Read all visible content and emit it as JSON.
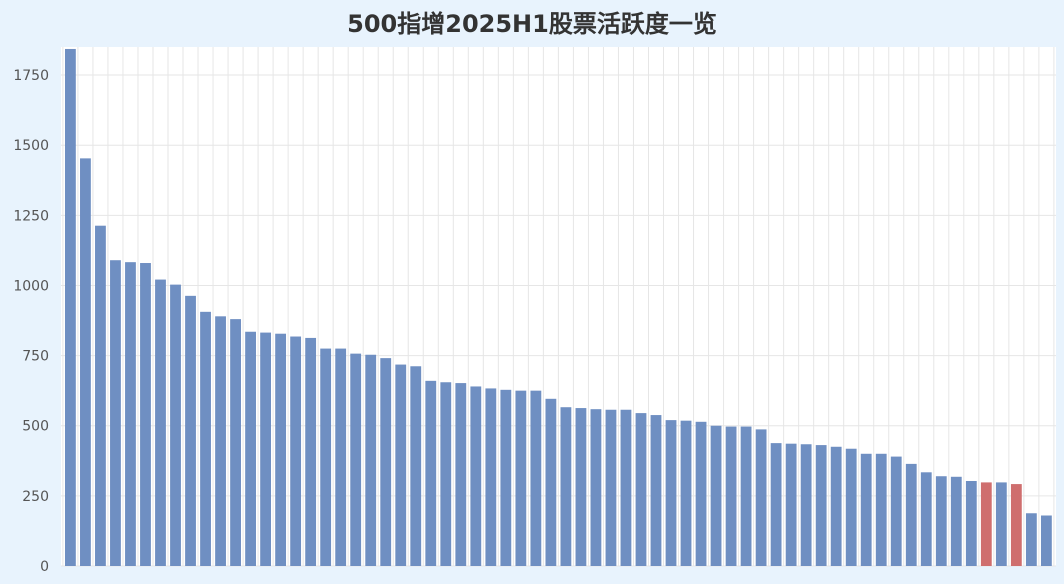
{
  "chart_data": {
    "type": "bar",
    "title": "500指增2025H1股票活跃度一览",
    "xlabel": "",
    "ylabel": "",
    "ylim": [
      0,
      1850
    ],
    "yticks": [
      0,
      250,
      500,
      750,
      1000,
      1250,
      1500,
      1750
    ],
    "grid": true,
    "legend": "none",
    "colors": {
      "default": "#6f8fc2",
      "highlight": "#cf6e6e",
      "background": "#e8f3fd",
      "plot_bg": "#ffffff",
      "grid": "#e6e6e6"
    },
    "highlight_indices": [
      61,
      63
    ],
    "values": [
      1843,
      1453,
      1213,
      1090,
      1083,
      1080,
      1021,
      1003,
      963,
      906,
      890,
      880,
      835,
      832,
      828,
      818,
      813,
      775,
      775,
      757,
      753,
      741,
      718,
      712,
      660,
      655,
      652,
      640,
      633,
      628,
      625,
      625,
      596,
      566,
      563,
      559,
      557,
      557,
      545,
      538,
      520,
      518,
      514,
      500,
      497,
      497,
      487,
      438,
      436,
      434,
      431,
      425,
      418,
      400,
      400,
      390,
      364,
      334,
      320,
      318,
      303,
      298,
      298,
      292,
      188,
      180
    ]
  }
}
